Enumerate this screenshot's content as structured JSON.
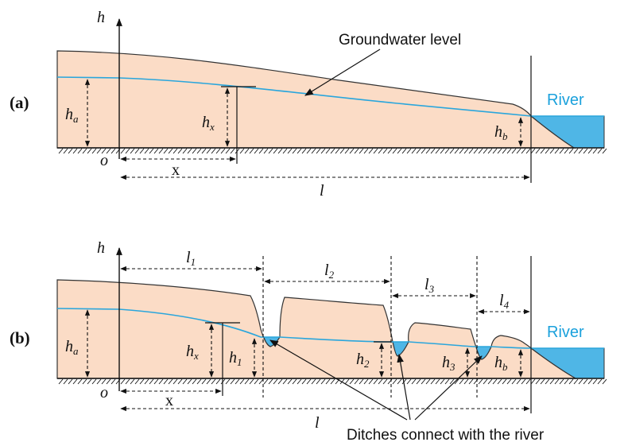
{
  "panel_a": {
    "panel_label": "(a)",
    "axis_h": "h",
    "origin": "o",
    "groundwater_label": "Groundwater level",
    "river_label": "River",
    "ha": {
      "main": "h",
      "sub": "a"
    },
    "hx": {
      "main": "h",
      "sub": "x"
    },
    "hb": {
      "main": "h",
      "sub": "b"
    },
    "x_label": "x",
    "l_label": "l"
  },
  "panel_b": {
    "panel_label": "(b)",
    "axis_h": "h",
    "origin": "o",
    "river_label": "River",
    "ha": {
      "main": "h",
      "sub": "a"
    },
    "hx": {
      "main": "h",
      "sub": "x"
    },
    "h1": {
      "main": "h",
      "sub": "1"
    },
    "h2": {
      "main": "h",
      "sub": "2"
    },
    "h3": {
      "main": "h",
      "sub": "3"
    },
    "hb": {
      "main": "h",
      "sub": "b"
    },
    "l1": {
      "main": "l",
      "sub": "1"
    },
    "l2": {
      "main": "l",
      "sub": "2"
    },
    "l3": {
      "main": "l",
      "sub": "3"
    },
    "l4": {
      "main": "l",
      "sub": "4"
    },
    "x_label": "x",
    "l_label": "l",
    "ditch_note": "Ditches connect with the river"
  }
}
